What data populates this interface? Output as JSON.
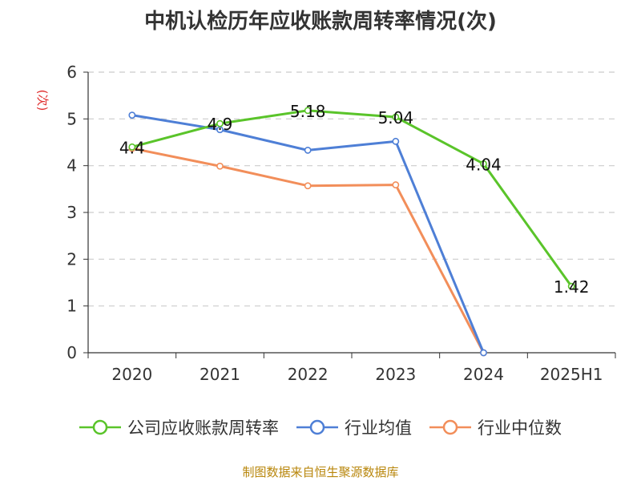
{
  "title": "中机认检历年应收账款周转率情况(次)",
  "source": "制图数据来自恒生聚源数据库",
  "chart_data": {
    "type": "line",
    "title": "中机认检历年应收账款周转率情况(次)",
    "ylabel": "(次)",
    "xlabel": "",
    "categories": [
      "2020",
      "2021",
      "2022",
      "2023",
      "2024",
      "2025H1"
    ],
    "ylim": [
      0,
      6
    ],
    "yticks": [
      0,
      1,
      2,
      3,
      4,
      5,
      6
    ],
    "grid": true,
    "legend_position": "bottom",
    "series": [
      {
        "name": "公司应收账款周转率",
        "color": "#5ac42a",
        "values": [
          4.4,
          4.9,
          5.18,
          5.04,
          4.04,
          1.42
        ],
        "labels": [
          "4.4",
          "4.9",
          "5.18",
          "5.04",
          "4.04",
          "1.42"
        ]
      },
      {
        "name": "行业均值",
        "color": "#4e7fd6",
        "values": [
          5.08,
          4.77,
          4.33,
          4.52,
          0,
          null
        ],
        "labels": null
      },
      {
        "name": "行业中位数",
        "color": "#f28e5a",
        "values": [
          4.37,
          3.99,
          3.57,
          3.59,
          0,
          null
        ],
        "labels": null
      }
    ]
  }
}
